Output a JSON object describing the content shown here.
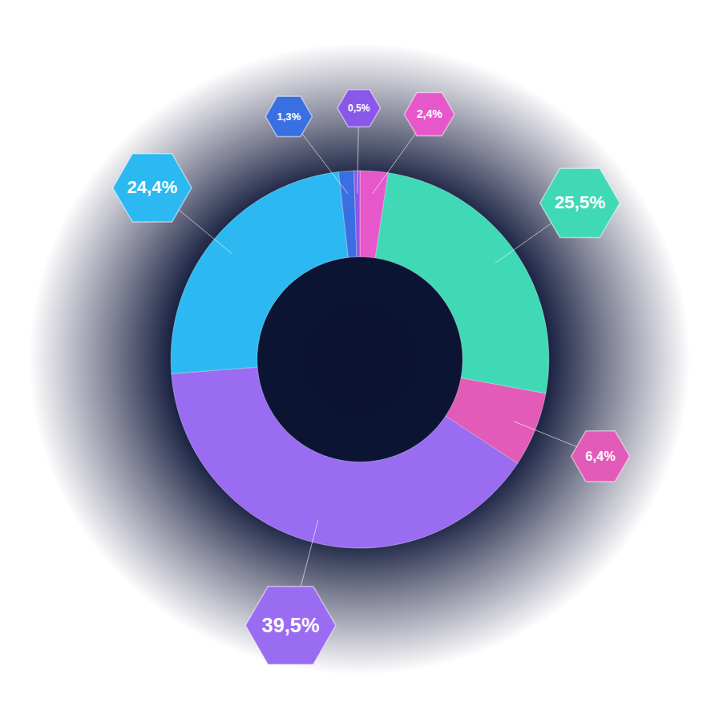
{
  "chart_data": {
    "type": "pie",
    "values": [
      2.4,
      25.5,
      6.4,
      39.5,
      24.4,
      1.3,
      0.5
    ],
    "value_labels": [
      "2,4%",
      "25,5%",
      "6,4%",
      "39,5%",
      "24,4%",
      "1,3%",
      "0,5%"
    ],
    "colors": [
      "#e658c9",
      "#3fd9b6",
      "#e35bb8",
      "#9a6cf2",
      "#2cb9f2",
      "#3a6fe2",
      "#8a58e8"
    ],
    "data_labels": true
  }
}
